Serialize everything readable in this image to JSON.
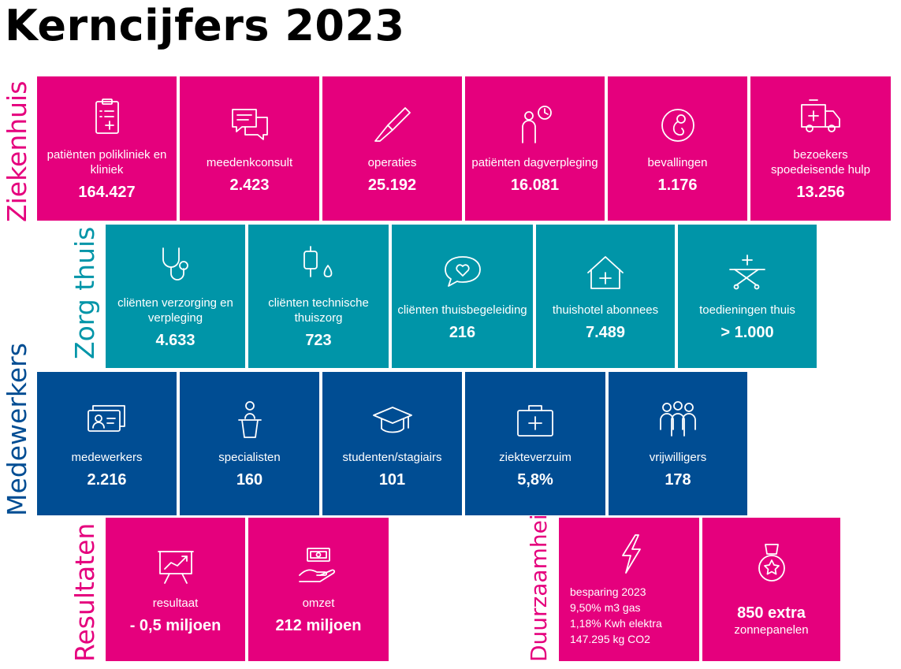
{
  "title": "Kerncijfers 2023",
  "colors": {
    "pink": "#e5007d",
    "teal": "#0095a8",
    "navy": "#004d93"
  },
  "sections": {
    "ziekenhuis": "Ziekenhuis",
    "zorg_thuis": "Zorg thuis",
    "medewerkers": "Medewerkers",
    "resultaten": "Resultaten",
    "duurzaamheid": "Duurzaamheid"
  },
  "ziekenhuis": [
    {
      "icon": "clipboard-icon",
      "label": "patiënten polikliniek en kliniek",
      "value": "164.427"
    },
    {
      "icon": "chat-icon",
      "label": "meedenkconsult",
      "value": "2.423"
    },
    {
      "icon": "scalpel-icon",
      "label": "operaties",
      "value": "25.192"
    },
    {
      "icon": "person-clock-icon",
      "label": "patiënten dagverpleging",
      "value": "16.081"
    },
    {
      "icon": "baby-womb-icon",
      "label": "bevallingen",
      "value": "1.176"
    },
    {
      "icon": "ambulance-icon",
      "label": "bezoekers spoedeisende hulp",
      "value": "13.256"
    }
  ],
  "zorg_thuis": [
    {
      "icon": "stethoscope-icon",
      "label": "cliënten verzorging en verpleging",
      "value": "4.633"
    },
    {
      "icon": "infusion-icon",
      "label": "cliënten technische thuiszorg",
      "value": "723"
    },
    {
      "icon": "heart-bubble-icon",
      "label": "cliënten thuisbegeleiding",
      "value": "216"
    },
    {
      "icon": "house-plus-icon",
      "label": "thuishotel abonnees",
      "value": "7.489"
    },
    {
      "icon": "stretcher-icon",
      "label": "toedieningen thuis",
      "value": "> 1.000"
    }
  ],
  "medewerkers": [
    {
      "icon": "id-card-icon",
      "label": "medewerkers",
      "value": "2.216"
    },
    {
      "icon": "speaker-podium-icon",
      "label": "specialisten",
      "value": "160"
    },
    {
      "icon": "graduation-cap-icon",
      "label": "studenten/stagiairs",
      "value": "101"
    },
    {
      "icon": "first-aid-kit-icon",
      "label": "ziekteverzuim",
      "value": "5,8%"
    },
    {
      "icon": "group-icon",
      "label": "vrijwilligers",
      "value": "178"
    }
  ],
  "resultaten": [
    {
      "icon": "chart-board-icon",
      "label": "resultaat",
      "value": "- 0,5 miljoen"
    },
    {
      "icon": "hand-money-icon",
      "label": "omzet",
      "value": "212 miljoen"
    }
  ],
  "duurzaamheid": {
    "besparing": {
      "icon": "lightning-icon",
      "lines": [
        "besparing 2023",
        "9,50% m3 gas",
        "1,18% Kwh elektra",
        "147.295 kg CO2"
      ]
    },
    "zonnepanelen": {
      "icon": "medal-icon",
      "value": "850 extra",
      "label": "zonnepanelen"
    }
  }
}
